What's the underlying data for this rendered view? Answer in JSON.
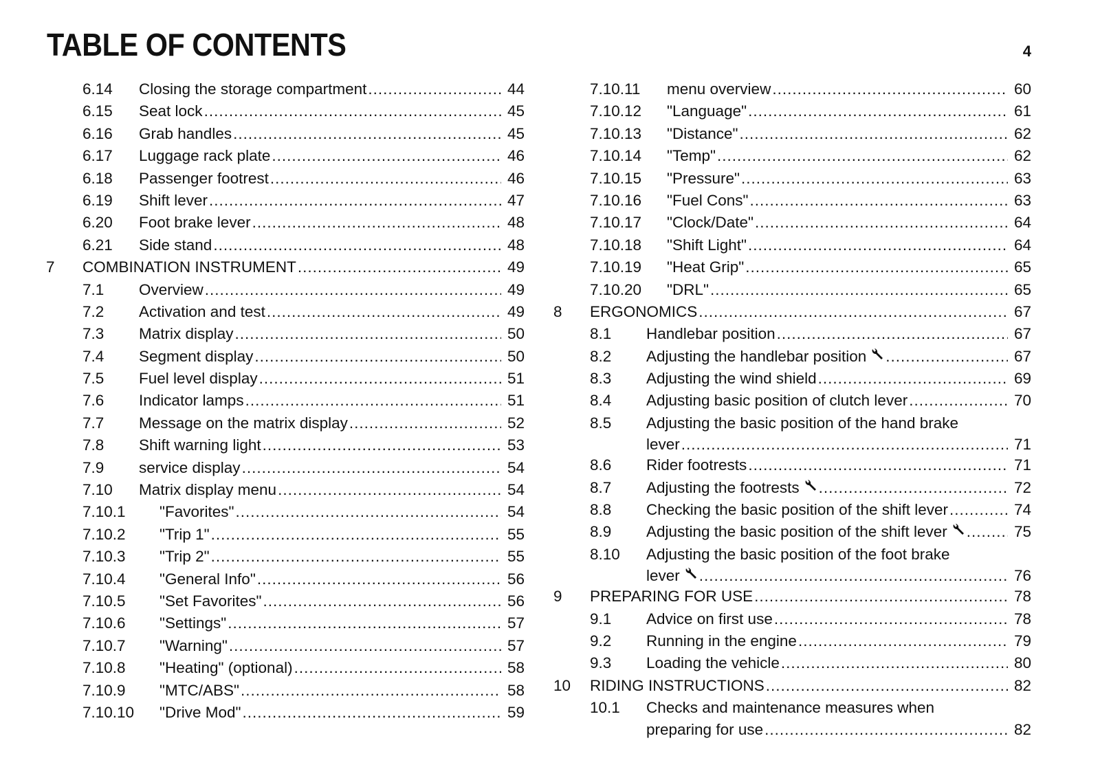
{
  "header": {
    "title": "TABLE OF CONTENTS",
    "page_number": "4"
  },
  "columns": [
    [
      {
        "num": "6.14",
        "level": 1,
        "title": [
          "Closing the storage compartment"
        ],
        "page": "44"
      },
      {
        "num": "6.15",
        "level": 1,
        "title": [
          "Seat lock"
        ],
        "page": "45"
      },
      {
        "num": "6.16",
        "level": 1,
        "title": [
          "Grab handles"
        ],
        "page": "45"
      },
      {
        "num": "6.17",
        "level": 1,
        "title": [
          "Luggage rack plate"
        ],
        "page": "46"
      },
      {
        "num": "6.18",
        "level": 1,
        "title": [
          "Passenger footrest"
        ],
        "page": "46"
      },
      {
        "num": "6.19",
        "level": 1,
        "title": [
          "Shift lever"
        ],
        "page": "47"
      },
      {
        "num": "6.20",
        "level": 1,
        "title": [
          "Foot brake lever"
        ],
        "page": "48"
      },
      {
        "num": "6.21",
        "level": 1,
        "title": [
          "Side stand"
        ],
        "page": "48"
      },
      {
        "num": "7",
        "level": 0,
        "title": [
          "COMBINATION INSTRUMENT"
        ],
        "page": "49"
      },
      {
        "num": "7.1",
        "level": 1,
        "title": [
          "Overview"
        ],
        "page": "49"
      },
      {
        "num": "7.2",
        "level": 1,
        "title": [
          "Activation and test"
        ],
        "page": "49"
      },
      {
        "num": "7.3",
        "level": 1,
        "title": [
          "Matrix display"
        ],
        "page": "50"
      },
      {
        "num": "7.4",
        "level": 1,
        "title": [
          "Segment display"
        ],
        "page": "50"
      },
      {
        "num": "7.5",
        "level": 1,
        "title": [
          "Fuel level display"
        ],
        "page": "51"
      },
      {
        "num": "7.6",
        "level": 1,
        "title": [
          "Indicator lamps"
        ],
        "page": "51"
      },
      {
        "num": "7.7",
        "level": 1,
        "title": [
          "Message on the matrix display"
        ],
        "page": "52"
      },
      {
        "num": "7.8",
        "level": 1,
        "title": [
          "Shift warning light"
        ],
        "page": "53"
      },
      {
        "num": "7.9",
        "level": 1,
        "title": [
          "service display"
        ],
        "page": "54"
      },
      {
        "num": "7.10",
        "level": 1,
        "title": [
          "Matrix display menu"
        ],
        "page": "54"
      },
      {
        "num": "7.10.1",
        "level": 2,
        "title": [
          "\"Favorites\""
        ],
        "page": "54"
      },
      {
        "num": "7.10.2",
        "level": 2,
        "title": [
          "\"Trip 1\""
        ],
        "page": "55"
      },
      {
        "num": "7.10.3",
        "level": 2,
        "title": [
          "\"Trip 2\""
        ],
        "page": "55"
      },
      {
        "num": "7.10.4",
        "level": 2,
        "title": [
          "\"General Info\""
        ],
        "page": "56"
      },
      {
        "num": "7.10.5",
        "level": 2,
        "title": [
          "\"Set Favorites\""
        ],
        "page": "56"
      },
      {
        "num": "7.10.6",
        "level": 2,
        "title": [
          "\"Settings\""
        ],
        "page": "57"
      },
      {
        "num": "7.10.7",
        "level": 2,
        "title": [
          "\"Warning\""
        ],
        "page": "57"
      },
      {
        "num": "7.10.8",
        "level": 2,
        "title": [
          "\"Heating\" (optional)"
        ],
        "page": "58"
      },
      {
        "num": "7.10.9",
        "level": 2,
        "title": [
          "\"MTC/ABS\""
        ],
        "page": "58"
      },
      {
        "num": "7.10.10",
        "level": 2,
        "title": [
          "\"Drive Mod\""
        ],
        "page": "59"
      }
    ],
    [
      {
        "num": "7.10.11",
        "level": 2,
        "title": [
          "menu overview"
        ],
        "page": "60"
      },
      {
        "num": "7.10.12",
        "level": 2,
        "title": [
          "\"Language\""
        ],
        "page": "61"
      },
      {
        "num": "7.10.13",
        "level": 2,
        "title": [
          "\"Distance\""
        ],
        "page": "62"
      },
      {
        "num": "7.10.14",
        "level": 2,
        "title": [
          "\"Temp\""
        ],
        "page": "62"
      },
      {
        "num": "7.10.15",
        "level": 2,
        "title": [
          "\"Pressure\""
        ],
        "page": "63"
      },
      {
        "num": "7.10.16",
        "level": 2,
        "title": [
          "\"Fuel Cons\""
        ],
        "page": "63"
      },
      {
        "num": "7.10.17",
        "level": 2,
        "title": [
          "\"Clock/Date\""
        ],
        "page": "64"
      },
      {
        "num": "7.10.18",
        "level": 2,
        "title": [
          "\"Shift Light\""
        ],
        "page": "64"
      },
      {
        "num": "7.10.19",
        "level": 2,
        "title": [
          "\"Heat Grip\""
        ],
        "page": "65"
      },
      {
        "num": "7.10.20",
        "level": 2,
        "title": [
          "\"DRL\""
        ],
        "page": "65"
      },
      {
        "num": "8",
        "level": 0,
        "title": [
          "ERGONOMICS"
        ],
        "page": "67"
      },
      {
        "num": "8.1",
        "level": 1,
        "title": [
          "Handlebar position"
        ],
        "page": "67"
      },
      {
        "num": "8.2",
        "level": 1,
        "title": [
          "Adjusting the handlebar position"
        ],
        "page": "67",
        "icon": "wrench-icon"
      },
      {
        "num": "8.3",
        "level": 1,
        "title": [
          "Adjusting the wind shield"
        ],
        "page": "69"
      },
      {
        "num": "8.4",
        "level": 1,
        "title": [
          "Adjusting basic position of clutch lever"
        ],
        "page": "70"
      },
      {
        "num": "8.5",
        "level": 1,
        "title": [
          "Adjusting the basic position of the hand brake",
          "lever"
        ],
        "page": "71"
      },
      {
        "num": "8.6",
        "level": 1,
        "title": [
          "Rider footrests"
        ],
        "page": "71"
      },
      {
        "num": "8.7",
        "level": 1,
        "title": [
          "Adjusting the footrests"
        ],
        "page": "72",
        "icon": "wrench-icon"
      },
      {
        "num": "8.8",
        "level": 1,
        "title": [
          "Checking the basic position of the shift lever"
        ],
        "page": "74"
      },
      {
        "num": "8.9",
        "level": 1,
        "title": [
          "Adjusting the basic position of the shift lever"
        ],
        "page": "75",
        "icon": "wrench-icon"
      },
      {
        "num": "8.10",
        "level": 1,
        "title": [
          "Adjusting the basic position of the foot brake",
          "lever"
        ],
        "page": "76",
        "icon": "wrench-icon"
      },
      {
        "num": "9",
        "level": 0,
        "title": [
          "PREPARING FOR USE"
        ],
        "page": "78"
      },
      {
        "num": "9.1",
        "level": 1,
        "title": [
          "Advice on first use"
        ],
        "page": "78"
      },
      {
        "num": "9.2",
        "level": 1,
        "title": [
          "Running in the engine"
        ],
        "page": "79"
      },
      {
        "num": "9.3",
        "level": 1,
        "title": [
          "Loading the vehicle"
        ],
        "page": "80"
      },
      {
        "num": "10",
        "level": 0,
        "title": [
          "RIDING INSTRUCTIONS"
        ],
        "page": "82"
      },
      {
        "num": "10.1",
        "level": 1,
        "title": [
          "Checks and maintenance measures when",
          "preparing for use"
        ],
        "page": "82"
      }
    ]
  ]
}
